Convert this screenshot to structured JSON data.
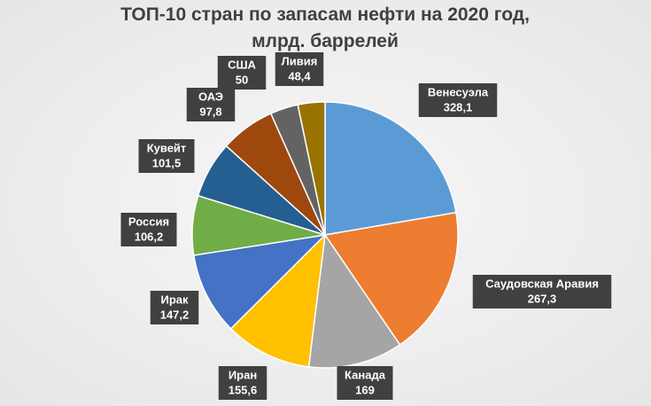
{
  "chart_data": {
    "type": "pie",
    "title": "ТОП-10 стран по запасам нефти на 2020 год, млрд. баррелей",
    "categories": [
      "Венесуэла",
      "Саудовская Аравия",
      "Канада",
      "Иран",
      "Ирак",
      "Россия",
      "Кувейт",
      "ОАЭ",
      "США",
      "Ливия"
    ],
    "values": [
      328.1,
      267.3,
      169,
      155.6,
      147.2,
      106.2,
      101.5,
      97.8,
      50,
      48.4
    ],
    "value_labels": [
      "328,1",
      "267,3",
      "169",
      "155,6",
      "147,2",
      "106,2",
      "101,5",
      "97,8",
      "50",
      "48,4"
    ],
    "colors": [
      "#5b9bd5",
      "#ed7d31",
      "#a5a5a5",
      "#ffc000",
      "#4472c4",
      "#70ad47",
      "#255e91",
      "#9e480e",
      "#636363",
      "#997300"
    ]
  }
}
